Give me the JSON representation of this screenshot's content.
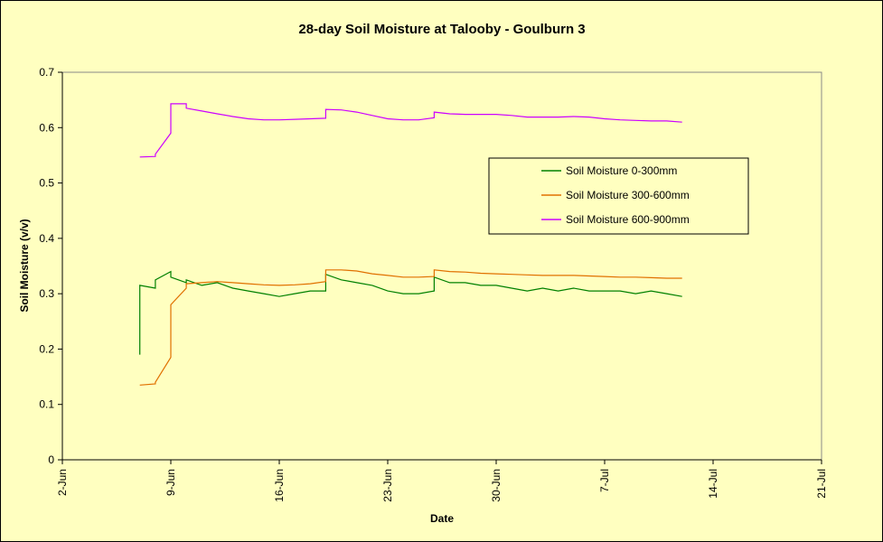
{
  "chart_data": {
    "type": "line",
    "title": "28-day Soil Moisture at Talooby - Goulburn 3",
    "xlabel": "Date",
    "ylabel": "Soil Moisture (v/v)",
    "ylim": [
      0,
      0.7
    ],
    "yticks": [
      "0",
      "0.1",
      "0.2",
      "0.3",
      "0.4",
      "0.5",
      "0.6",
      "0.7"
    ],
    "xlim": [
      "2-Jun",
      "21-Jul"
    ],
    "xticks": [
      "2-Jun",
      "9-Jun",
      "16-Jun",
      "23-Jun",
      "30-Jun",
      "7-Jul",
      "14-Jul",
      "21-Jul"
    ],
    "grid": false,
    "legend_position": "right",
    "series": [
      {
        "name": "Soil Moisture 0-300mm",
        "color": "#008000",
        "x": [
          "7-Jun",
          "7-Jun",
          "7-Jun",
          "8-Jun",
          "8-Jun",
          "9-Jun",
          "9-Jun",
          "10-Jun",
          "10-Jun",
          "11-Jun",
          "12-Jun",
          "13-Jun",
          "14-Jun",
          "15-Jun",
          "16-Jun",
          "17-Jun",
          "18-Jun",
          "19-Jun",
          "19-Jun",
          "20-Jun",
          "21-Jun",
          "22-Jun",
          "23-Jun",
          "24-Jun",
          "25-Jun",
          "26-Jun",
          "26-Jun",
          "27-Jun",
          "28-Jun",
          "29-Jun",
          "30-Jun",
          "1-Jul",
          "2-Jul",
          "3-Jul",
          "4-Jul",
          "5-Jul",
          "6-Jul",
          "7-Jul",
          "8-Jul",
          "9-Jul",
          "10-Jul",
          "11-Jul",
          "12-Jul"
        ],
        "values": [
          0.19,
          0.19,
          0.315,
          0.31,
          0.325,
          0.34,
          0.33,
          0.32,
          0.325,
          0.315,
          0.32,
          0.31,
          0.305,
          0.3,
          0.295,
          0.3,
          0.305,
          0.305,
          0.335,
          0.325,
          0.32,
          0.315,
          0.305,
          0.3,
          0.3,
          0.305,
          0.33,
          0.32,
          0.32,
          0.315,
          0.315,
          0.31,
          0.305,
          0.31,
          0.305,
          0.31,
          0.305,
          0.305,
          0.305,
          0.3,
          0.305,
          0.3,
          0.295
        ]
      },
      {
        "name": "Soil Moisture 300-600mm",
        "color": "#e07000",
        "x": [
          "7-Jun",
          "8-Jun",
          "8-Jun",
          "9-Jun",
          "9-Jun",
          "10-Jun",
          "10-Jun",
          "11-Jun",
          "12-Jun",
          "13-Jun",
          "14-Jun",
          "15-Jun",
          "16-Jun",
          "17-Jun",
          "18-Jun",
          "19-Jun",
          "19-Jun",
          "20-Jun",
          "21-Jun",
          "22-Jun",
          "23-Jun",
          "24-Jun",
          "25-Jun",
          "26-Jun",
          "26-Jun",
          "27-Jun",
          "28-Jun",
          "29-Jun",
          "30-Jun",
          "1-Jul",
          "2-Jul",
          "3-Jul",
          "4-Jul",
          "5-Jul",
          "6-Jul",
          "7-Jul",
          "8-Jul",
          "9-Jul",
          "10-Jul",
          "11-Jul",
          "12-Jul"
        ],
        "values": [
          0.135,
          0.137,
          0.14,
          0.185,
          0.28,
          0.31,
          0.318,
          0.32,
          0.322,
          0.32,
          0.318,
          0.316,
          0.315,
          0.316,
          0.318,
          0.322,
          0.343,
          0.343,
          0.341,
          0.336,
          0.333,
          0.33,
          0.33,
          0.331,
          0.343,
          0.34,
          0.339,
          0.337,
          0.336,
          0.335,
          0.334,
          0.333,
          0.333,
          0.333,
          0.332,
          0.331,
          0.33,
          0.33,
          0.329,
          0.328,
          0.328
        ]
      },
      {
        "name": "Soil Moisture 600-900mm",
        "color": "#cc00ff",
        "x": [
          "7-Jun",
          "7-Jun",
          "8-Jun",
          "8-Jun",
          "9-Jun",
          "9-Jun",
          "10-Jun",
          "10-Jun",
          "11-Jun",
          "12-Jun",
          "13-Jun",
          "14-Jun",
          "15-Jun",
          "16-Jun",
          "17-Jun",
          "18-Jun",
          "19-Jun",
          "19-Jun",
          "20-Jun",
          "21-Jun",
          "22-Jun",
          "23-Jun",
          "24-Jun",
          "25-Jun",
          "26-Jun",
          "26-Jun",
          "27-Jun",
          "28-Jun",
          "29-Jun",
          "30-Jun",
          "1-Jul",
          "2-Jul",
          "3-Jul",
          "4-Jul",
          "5-Jul",
          "6-Jul",
          "7-Jul",
          "8-Jul",
          "9-Jul",
          "10-Jul",
          "11-Jul",
          "12-Jul"
        ],
        "values": [
          0.547,
          0.547,
          0.548,
          0.552,
          0.59,
          0.643,
          0.643,
          0.635,
          0.63,
          0.625,
          0.62,
          0.616,
          0.614,
          0.614,
          0.615,
          0.616,
          0.617,
          0.633,
          0.632,
          0.628,
          0.622,
          0.616,
          0.614,
          0.614,
          0.618,
          0.628,
          0.625,
          0.624,
          0.624,
          0.624,
          0.622,
          0.619,
          0.619,
          0.619,
          0.62,
          0.619,
          0.616,
          0.614,
          0.613,
          0.612,
          0.612,
          0.61
        ]
      }
    ]
  }
}
